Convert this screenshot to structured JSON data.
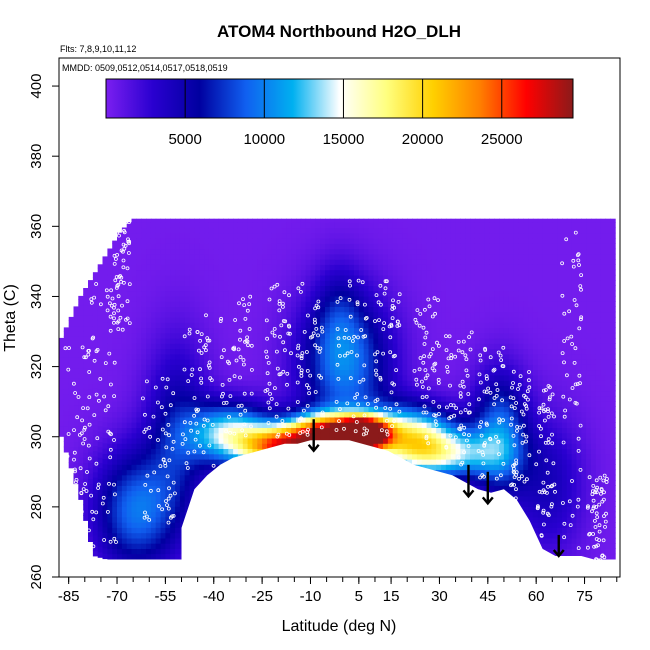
{
  "chart_data": {
    "type": "heatmap",
    "title": "ATOM4 Northbound H2O_DLH",
    "annotations": {
      "flights": "Flts: 7,8,9,10,11,12",
      "dates": "MMDD: 0509,0512,0514,0517,0518,0519"
    },
    "xlabel": "Latitude (deg N)",
    "ylabel": "Theta (C)",
    "xlim": [
      -88,
      86
    ],
    "ylim": [
      260,
      408
    ],
    "x_ticks": [
      -85,
      -70,
      -55,
      -40,
      -25,
      -10,
      5,
      15,
      30,
      45,
      60,
      75
    ],
    "x_minor_step": 5,
    "y_ticks": [
      260,
      280,
      300,
      320,
      340,
      360,
      380,
      400
    ],
    "colorbar": {
      "range": [
        0,
        29500
      ],
      "ticks": [
        5000,
        10000,
        15000,
        20000,
        25000
      ],
      "colors": [
        "#7b1ff0",
        "#2a00d0",
        "#0000a0",
        "#1060f0",
        "#00b0f0",
        "#ffffff",
        "#ffff80",
        "#ffd000",
        "#ff8000",
        "#ff0000",
        "#8b1a1a"
      ]
    },
    "background_value": 300,
    "field_extent": {
      "lat": [
        -88,
        -82,
        -78,
        -74,
        -70,
        -66,
        -62,
        -58,
        -54,
        -50,
        -46,
        -42,
        -38,
        -34,
        -30,
        -26,
        -22,
        -18,
        -14,
        -10,
        -6,
        -2,
        2,
        6,
        10,
        14,
        18,
        22,
        26,
        30,
        34,
        38,
        42,
        46,
        50,
        54,
        58,
        62,
        66,
        70,
        74,
        78,
        82
      ],
      "theta_top": [
        328,
        340,
        346,
        352,
        358,
        362,
        362,
        362,
        362,
        362,
        362,
        362,
        362,
        362,
        362,
        362,
        362,
        362,
        362,
        362,
        362,
        362,
        362,
        362,
        362,
        362,
        362,
        362,
        362,
        362,
        362,
        362,
        362,
        362,
        362,
        362,
        362,
        362,
        362,
        362,
        362,
        362,
        362
      ],
      "theta_bottom": [
        300,
        282,
        266,
        265,
        265,
        265,
        265,
        265,
        265,
        265,
        265,
        265,
        265,
        265,
        265,
        265,
        265,
        265,
        265,
        265,
        265,
        265,
        265,
        265,
        265,
        265,
        265,
        265,
        265,
        265,
        265,
        265,
        265,
        265,
        265,
        265,
        265,
        265,
        265,
        265,
        265,
        265,
        265
      ],
      "no_data_floor": [
        0,
        0,
        0,
        0,
        0,
        0,
        0,
        0,
        0,
        274,
        285,
        289,
        292,
        294,
        295,
        296,
        297,
        298,
        298,
        299,
        299,
        299,
        299,
        298,
        297,
        296,
        294,
        292,
        291,
        290,
        289,
        287,
        285,
        284,
        285,
        282,
        276,
        268,
        266,
        266,
        266,
        265,
        265
      ]
    },
    "moist_features": [
      {
        "lat": -65,
        "theta": 278,
        "value": 9000,
        "spread_lat": 9,
        "spread_theta": 12
      },
      {
        "lat": -52,
        "theta": 300,
        "value": 5500,
        "spread_lat": 7,
        "spread_theta": 18
      },
      {
        "lat": -35,
        "theta": 300,
        "value": 14000,
        "spread_lat": 9,
        "spread_theta": 6
      },
      {
        "lat": -20,
        "theta": 296,
        "value": 20000,
        "spread_lat": 8,
        "spread_theta": 4
      },
      {
        "lat": -5,
        "theta": 300,
        "value": 26000,
        "spread_lat": 9,
        "spread_theta": 4
      },
      {
        "lat": 6,
        "theta": 300,
        "value": 28500,
        "spread_lat": 5,
        "spread_theta": 3
      },
      {
        "lat": 0,
        "theta": 320,
        "value": 9500,
        "spread_lat": 10,
        "spread_theta": 14
      },
      {
        "lat": -2,
        "theta": 335,
        "value": 2500,
        "spread_lat": 5,
        "spread_theta": 10
      },
      {
        "lat": 20,
        "theta": 300,
        "value": 14000,
        "spread_lat": 10,
        "spread_theta": 6
      },
      {
        "lat": 30,
        "theta": 294,
        "value": 12000,
        "spread_lat": 12,
        "spread_theta": 5
      },
      {
        "lat": 48,
        "theta": 300,
        "value": 9000,
        "spread_lat": 6,
        "spread_theta": 12
      },
      {
        "lat": 63,
        "theta": 285,
        "value": 4000,
        "spread_lat": 8,
        "spread_theta": 14
      }
    ],
    "arrows": [
      {
        "lat": -9,
        "theta_start": 305,
        "theta_end": 296
      },
      {
        "lat": 39,
        "theta_start": 292,
        "theta_end": 283
      },
      {
        "lat": 45,
        "theta_start": 290,
        "theta_end": 281
      },
      {
        "lat": 67,
        "theta_start": 272,
        "theta_end": 266
      }
    ],
    "flight_tracks": [
      {
        "lat_range": [
          -86,
          -78
        ],
        "theta_range": [
          270,
          330
        ]
      },
      {
        "lat_range": [
          -78,
          -70
        ],
        "theta_range": [
          268,
          346
        ]
      },
      {
        "lat_range": [
          -72,
          -66
        ],
        "theta_range": [
          330,
          362
        ]
      },
      {
        "lat_range": [
          -62,
          -52
        ],
        "theta_range": [
          275,
          318
        ]
      },
      {
        "lat_range": [
          -50,
          -40
        ],
        "theta_range": [
          290,
          336
        ]
      },
      {
        "lat_range": [
          -38,
          -28
        ],
        "theta_range": [
          300,
          340
        ]
      },
      {
        "lat_range": [
          -24,
          -16
        ],
        "theta_range": [
          300,
          344
        ]
      },
      {
        "lat_range": [
          -14,
          -6
        ],
        "theta_range": [
          300,
          345
        ]
      },
      {
        "lat_range": [
          -2,
          8
        ],
        "theta_range": [
          300,
          346
        ]
      },
      {
        "lat_range": [
          10,
          18
        ],
        "theta_range": [
          300,
          345
        ]
      },
      {
        "lat_range": [
          22,
          30
        ],
        "theta_range": [
          298,
          340
        ]
      },
      {
        "lat_range": [
          32,
          40
        ],
        "theta_range": [
          292,
          330
        ]
      },
      {
        "lat_range": [
          42,
          50
        ],
        "theta_range": [
          288,
          326
        ]
      },
      {
        "lat_range": [
          52,
          58
        ],
        "theta_range": [
          282,
          320
        ]
      },
      {
        "lat_range": [
          60,
          66
        ],
        "theta_range": [
          270,
          315
        ]
      },
      {
        "lat_range": [
          68,
          74
        ],
        "theta_range": [
          268,
          360
        ]
      },
      {
        "lat_range": [
          76,
          82
        ],
        "theta_range": [
          264,
          290
        ]
      }
    ]
  }
}
